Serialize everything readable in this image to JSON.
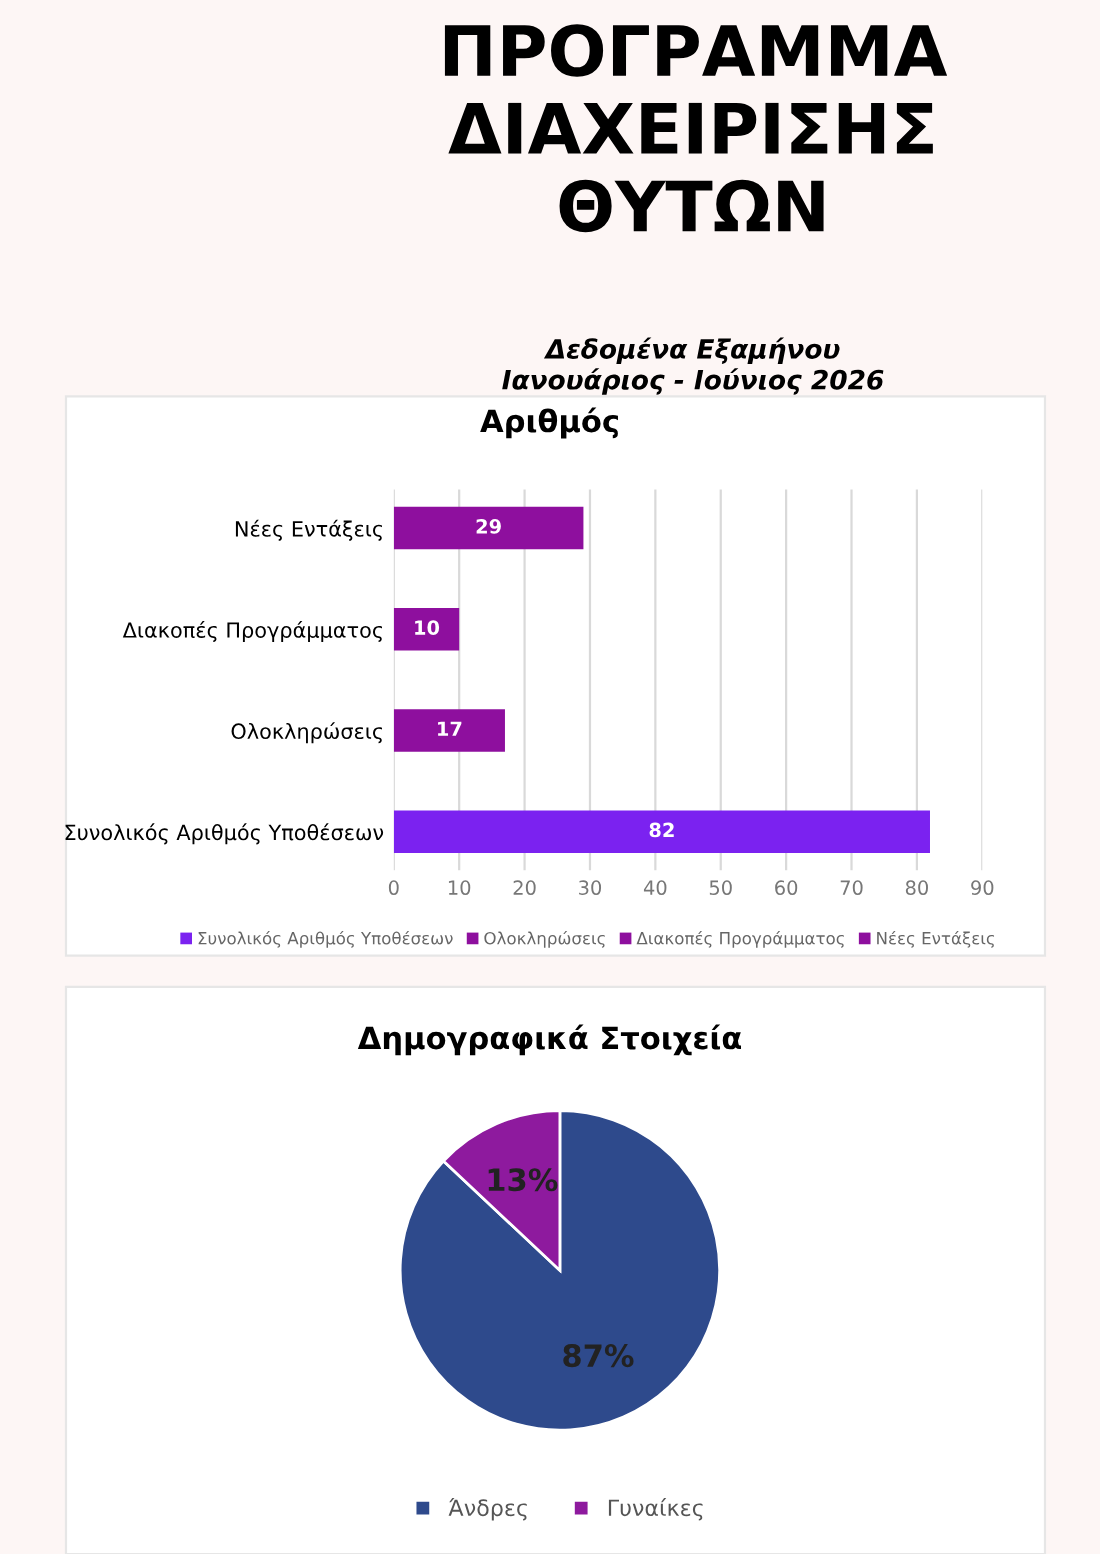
{
  "chart_data": [
    {
      "type": "other",
      "title": "ΠΡΟΓΡΑΜΜΑ ΔΙΑΧΕΙΡΙΣΗΣ ΘΥΤΩΝ",
      "subtitle": "Δεδομένα Εξαμήνου\nΙανουάριος - Ιούνιος 2026"
    },
    {
      "type": "bar",
      "orientation": "horizontal",
      "title": "Αριθμός",
      "categories": [
        "Νέες Εντάξεις",
        "Διακοπές Προγράμματος",
        "Ολοκληρώσεις",
        "Συνολικός Αριθμός Υποθέσεων"
      ],
      "series": [
        {
          "name": "Συνολικός Αριθμός Υποθέσεων",
          "color": "#7b22f0",
          "values": [
            null,
            null,
            null,
            82
          ]
        },
        {
          "name": "Ολοκληρώσεις",
          "color": "#8e0f9e",
          "values": [
            null,
            null,
            17,
            null
          ]
        },
        {
          "name": "Διακοπές Προγράμματος",
          "color": "#8e0f9e",
          "values": [
            null,
            10,
            null,
            null
          ]
        },
        {
          "name": "Νέες Εντάξεις",
          "color": "#8e0f9e",
          "values": [
            29,
            null,
            null,
            null
          ]
        }
      ],
      "xlim": [
        0,
        90
      ],
      "xticks": [
        0,
        10,
        20,
        30,
        40,
        50,
        60,
        70,
        80,
        90
      ],
      "grid": "x",
      "data_labels": true,
      "legend": "bottom"
    },
    {
      "type": "pie",
      "title": "Δημογραφικά Στοιχεία",
      "categories": [
        "Άνδρες",
        "Γυναίκες"
      ],
      "values": [
        87,
        13
      ],
      "colors": [
        "#2e4a8c",
        "#8e1a9e"
      ],
      "value_labels": [
        "87%",
        "13%"
      ],
      "legend": "bottom"
    }
  ]
}
